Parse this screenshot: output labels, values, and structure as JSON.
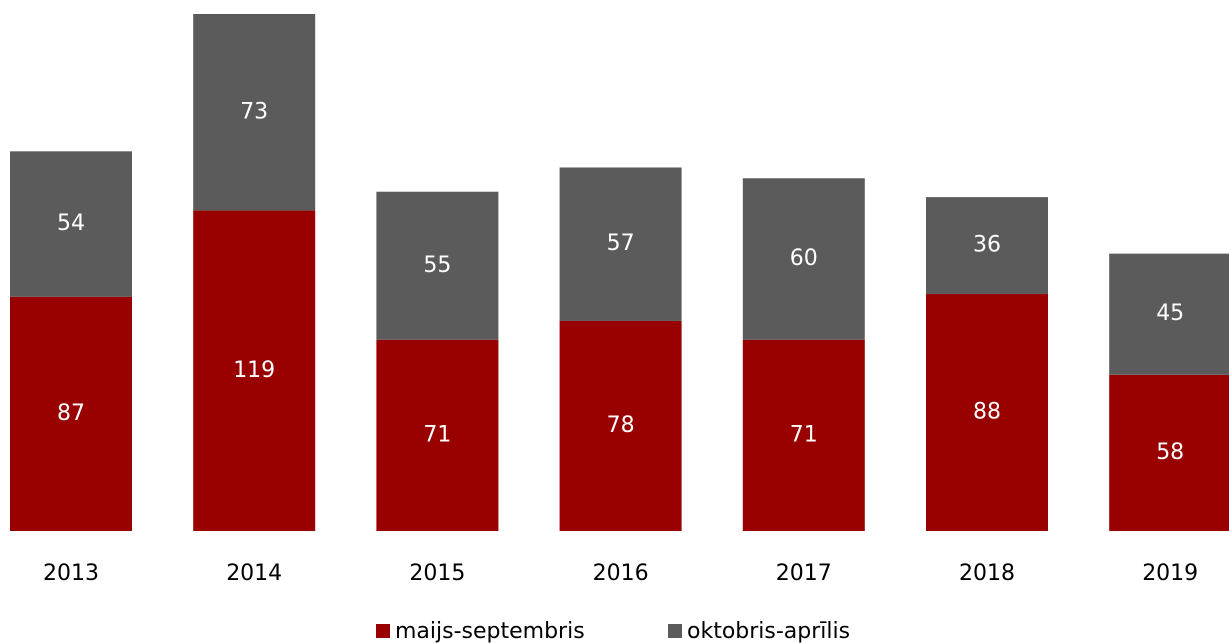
{
  "chart_data": {
    "type": "stacked_bar",
    "categories": [
      "2013",
      "2014",
      "2015",
      "2016",
      "2017",
      "2018",
      "2019"
    ],
    "series": [
      {
        "name": "maijs-septembris",
        "color": "#990000",
        "values": [
          87,
          119,
          71,
          78,
          71,
          88,
          58
        ]
      },
      {
        "name": "oktobris-aprīlis",
        "color": "#5b5b5b",
        "values": [
          54,
          73,
          55,
          57,
          60,
          36,
          45
        ]
      }
    ]
  }
}
